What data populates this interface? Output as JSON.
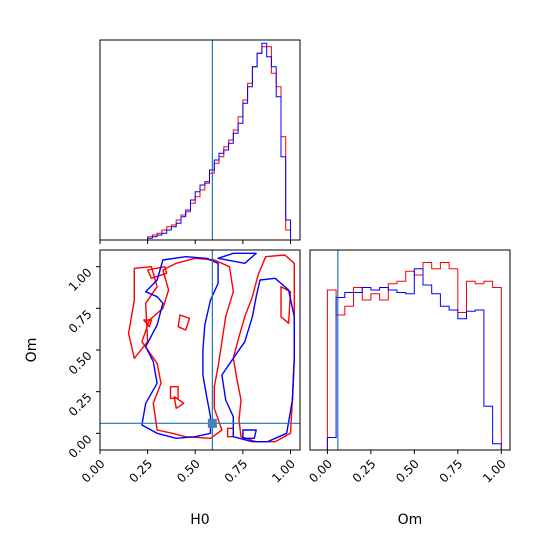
{
  "chart_data": [
    {
      "panel": "top-left",
      "type": "histogram",
      "xlim": [
        0,
        1.05
      ],
      "truth_x": 0.59,
      "tick_values": [
        0.0,
        0.25,
        0.5,
        0.75,
        1.0
      ],
      "bin_edges": [
        0.0,
        0.025,
        0.05,
        0.075,
        0.1,
        0.125,
        0.15,
        0.175,
        0.2,
        0.225,
        0.25,
        0.275,
        0.3,
        0.325,
        0.35,
        0.375,
        0.4,
        0.425,
        0.45,
        0.475,
        0.5,
        0.525,
        0.55,
        0.575,
        0.6,
        0.625,
        0.65,
        0.675,
        0.7,
        0.725,
        0.75,
        0.775,
        0.8,
        0.825,
        0.85,
        0.875,
        0.9,
        0.925,
        0.95,
        0.975,
        1.0,
        1.025,
        1.05
      ],
      "series": [
        {
          "color": "#ff0000",
          "values": [
            0,
            0,
            0,
            0,
            0,
            0,
            0,
            0,
            0,
            0,
            2,
            3,
            4,
            6,
            8,
            9,
            12,
            15,
            17,
            22,
            26,
            30,
            34,
            40,
            46,
            50,
            56,
            60,
            66,
            74,
            84,
            94,
            104,
            112,
            116,
            116,
            100,
            92,
            62,
            6,
            0,
            0
          ]
        },
        {
          "color": "#0000ff",
          "values": [
            0,
            0,
            0,
            0,
            0,
            0,
            0,
            0,
            0,
            0,
            1,
            2,
            3,
            4,
            6,
            8,
            10,
            14,
            18,
            24,
            29,
            33,
            35,
            42,
            48,
            52,
            54,
            58,
            64,
            70,
            82,
            92,
            104,
            112,
            118,
            110,
            104,
            86,
            50,
            12,
            0,
            0
          ]
        }
      ]
    },
    {
      "panel": "bottom-left",
      "type": "contour",
      "xlabel": "H0",
      "ylabel": "Om",
      "xlim": [
        0,
        1.05
      ],
      "ylim": [
        -0.1,
        1.1
      ],
      "truth": {
        "x": 0.59,
        "y": 0.06
      },
      "tick_labels_x": [
        "0.00",
        "0.25",
        "0.50",
        "0.75",
        "1.00"
      ],
      "tick_labels_y": [
        "0.00",
        "0.25",
        "0.50",
        "0.75",
        "1.00"
      ],
      "series": [
        {
          "color": "#ff0000",
          "contours": [
            [
              [
                0.4,
                1.02
              ],
              [
                0.5,
                1.05
              ],
              [
                0.6,
                1.04
              ],
              [
                0.68,
                1.0
              ],
              [
                0.7,
                0.85
              ],
              [
                0.66,
                0.7
              ],
              [
                0.64,
                0.55
              ],
              [
                0.62,
                0.4
              ],
              [
                0.6,
                0.28
              ],
              [
                0.6,
                0.15
              ],
              [
                0.64,
                0.02
              ],
              [
                0.58,
                -0.03
              ],
              [
                0.45,
                -0.02
              ],
              [
                0.38,
                0.0
              ],
              [
                0.3,
                0.02
              ],
              [
                0.28,
                0.18
              ],
              [
                0.32,
                0.3
              ],
              [
                0.3,
                0.42
              ],
              [
                0.22,
                0.55
              ],
              [
                0.26,
                0.68
              ],
              [
                0.33,
                0.75
              ],
              [
                0.36,
                0.86
              ],
              [
                0.33,
                0.98
              ],
              [
                0.4,
                1.02
              ]
            ],
            [
              [
                0.87,
                1.06
              ],
              [
                0.97,
                1.07
              ],
              [
                1.02,
                1.02
              ],
              [
                1.02,
                0.75
              ],
              [
                1.02,
                0.45
              ],
              [
                1.01,
                0.2
              ],
              [
                1.0,
                0.0
              ],
              [
                0.92,
                -0.05
              ],
              [
                0.82,
                -0.05
              ],
              [
                0.74,
                -0.02
              ],
              [
                0.73,
                0.08
              ],
              [
                0.74,
                0.2
              ],
              [
                0.72,
                0.32
              ],
              [
                0.7,
                0.45
              ],
              [
                0.73,
                0.58
              ],
              [
                0.76,
                0.7
              ],
              [
                0.8,
                0.82
              ],
              [
                0.83,
                0.95
              ],
              [
                0.87,
                1.06
              ]
            ],
            [
              [
                0.25,
                0.98
              ],
              [
                0.34,
                1.0
              ],
              [
                0.35,
                0.96
              ],
              [
                0.27,
                0.93
              ],
              [
                0.25,
                0.98
              ]
            ],
            [
              [
                0.18,
                0.45
              ],
              [
                0.25,
                0.55
              ],
              [
                0.24,
                0.78
              ],
              [
                0.3,
                0.88
              ],
              [
                0.27,
                1.0
              ],
              [
                0.18,
                0.99
              ],
              [
                0.18,
                0.8
              ],
              [
                0.15,
                0.6
              ],
              [
                0.18,
                0.45
              ]
            ],
            [
              [
                0.37,
                0.28
              ],
              [
                0.41,
                0.28
              ],
              [
                0.41,
                0.21
              ],
              [
                0.37,
                0.21
              ],
              [
                0.37,
                0.28
              ]
            ],
            [
              [
                0.23,
                0.68
              ],
              [
                0.27,
                0.68
              ],
              [
                0.26,
                0.64
              ],
              [
                0.23,
                0.68
              ]
            ],
            [
              [
                0.42,
                0.71
              ],
              [
                0.47,
                0.69
              ],
              [
                0.45,
                0.62
              ],
              [
                0.41,
                0.64
              ],
              [
                0.42,
                0.71
              ]
            ],
            [
              [
                0.95,
                0.88
              ],
              [
                1.0,
                0.85
              ],
              [
                0.99,
                0.66
              ],
              [
                0.95,
                0.7
              ],
              [
                0.95,
                0.88
              ]
            ],
            [
              [
                0.67,
                0.03
              ],
              [
                0.7,
                0.03
              ],
              [
                0.7,
                -0.02
              ],
              [
                0.67,
                -0.02
              ],
              [
                0.67,
                0.03
              ]
            ],
            [
              [
                0.39,
                0.22
              ],
              [
                0.44,
                0.18
              ],
              [
                0.4,
                0.15
              ],
              [
                0.39,
                0.22
              ]
            ]
          ]
        },
        {
          "color": "#0000ff",
          "contours": [
            [
              [
                0.33,
                1.04
              ],
              [
                0.45,
                1.06
              ],
              [
                0.56,
                1.05
              ],
              [
                0.62,
                1.02
              ],
              [
                0.62,
                0.9
              ],
              [
                0.58,
                0.8
              ],
              [
                0.55,
                0.65
              ],
              [
                0.54,
                0.5
              ],
              [
                0.54,
                0.35
              ],
              [
                0.56,
                0.22
              ],
              [
                0.58,
                0.1
              ],
              [
                0.58,
                0.0
              ],
              [
                0.5,
                -0.02
              ],
              [
                0.4,
                -0.03
              ],
              [
                0.3,
                0.0
              ],
              [
                0.22,
                0.05
              ],
              [
                0.24,
                0.18
              ],
              [
                0.3,
                0.3
              ],
              [
                0.28,
                0.43
              ],
              [
                0.24,
                0.52
              ],
              [
                0.3,
                0.65
              ],
              [
                0.33,
                0.78
              ],
              [
                0.3,
                0.82
              ],
              [
                0.24,
                0.85
              ],
              [
                0.3,
                0.92
              ],
              [
                0.33,
                1.04
              ]
            ],
            [
              [
                0.84,
                0.92
              ],
              [
                0.92,
                0.93
              ],
              [
                0.99,
                0.86
              ],
              [
                1.02,
                0.7
              ],
              [
                1.02,
                0.45
              ],
              [
                1.01,
                0.2
              ],
              [
                0.98,
                0.0
              ],
              [
                0.88,
                -0.05
              ],
              [
                0.8,
                -0.05
              ],
              [
                0.7,
                -0.02
              ],
              [
                0.7,
                0.1
              ],
              [
                0.66,
                0.2
              ],
              [
                0.64,
                0.35
              ],
              [
                0.7,
                0.45
              ],
              [
                0.76,
                0.55
              ],
              [
                0.8,
                0.7
              ],
              [
                0.82,
                0.82
              ],
              [
                0.84,
                0.92
              ]
            ],
            [
              [
                0.62,
                1.05
              ],
              [
                0.7,
                1.08
              ],
              [
                0.82,
                1.08
              ],
              [
                0.76,
                1.02
              ],
              [
                0.62,
                1.05
              ]
            ],
            [
              [
                0.75,
                0.02
              ],
              [
                0.82,
                0.02
              ],
              [
                0.81,
                -0.03
              ],
              [
                0.75,
                -0.03
              ],
              [
                0.75,
                0.02
              ]
            ]
          ]
        }
      ]
    },
    {
      "panel": "bottom-right",
      "type": "histogram",
      "xlabel": "Om",
      "xlim": [
        -0.1,
        1.05
      ],
      "truth_x": 0.06,
      "tick_labels_x": [
        "0.00",
        "0.25",
        "0.50",
        "0.75",
        "1.00"
      ],
      "bin_edges": [
        -0.1,
        -0.05,
        0.0,
        0.05,
        0.1,
        0.15,
        0.2,
        0.25,
        0.3,
        0.35,
        0.4,
        0.45,
        0.5,
        0.55,
        0.6,
        0.65,
        0.7,
        0.75,
        0.8,
        0.85,
        0.9,
        0.95,
        1.0,
        1.05
      ],
      "series": [
        {
          "color": "#ff0000",
          "values": [
            0,
            0,
            128,
            108,
            115,
            130,
            120,
            125,
            120,
            133,
            135,
            143,
            140,
            150,
            145,
            150,
            145,
            110,
            135,
            133,
            135,
            130,
            0
          ]
        },
        {
          "color": "#0000ff",
          "values": [
            0,
            0,
            10,
            122,
            126,
            126,
            130,
            128,
            130,
            128,
            126,
            125,
            145,
            132,
            125,
            115,
            112,
            105,
            111,
            112,
            35,
            5,
            0
          ]
        }
      ]
    }
  ]
}
